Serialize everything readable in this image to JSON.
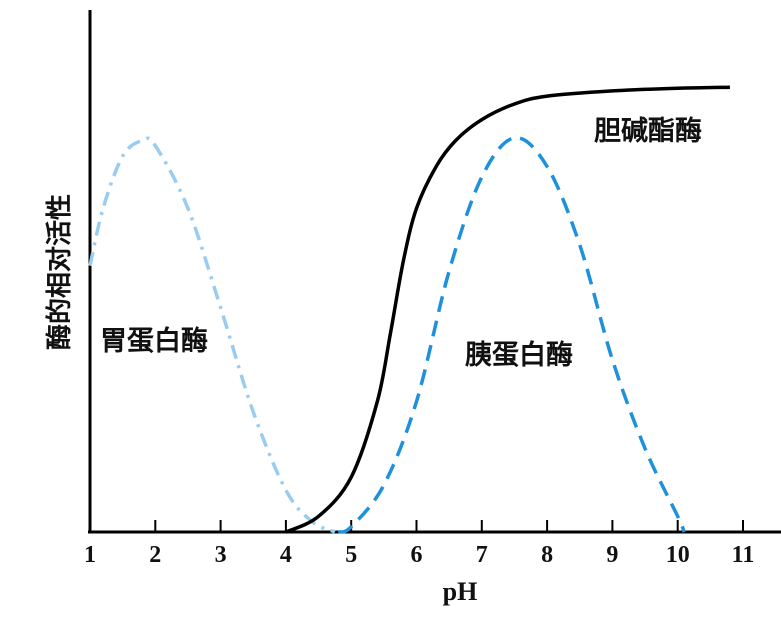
{
  "chart_data": {
    "type": "line",
    "title": "",
    "xlabel": "pH",
    "ylabel": "酶的相对活性",
    "xlim": [
      1,
      11.5
    ],
    "ylim": [
      0,
      100
    ],
    "xticks": [
      "1",
      "2",
      "3",
      "4",
      "5",
      "6",
      "7",
      "8",
      "9",
      "10",
      "11"
    ],
    "grid": false,
    "series": [
      {
        "name": "胃蛋白酶",
        "style": "dash-dot",
        "color": "#99CCF0",
        "x": [
          1,
          1.2,
          1.5,
          1.8,
          2.0,
          2.5,
          3.0,
          3.5,
          4.0,
          4.4,
          4.75
        ],
        "y": [
          51,
          62,
          72,
          75,
          74,
          62,
          43,
          23,
          8,
          2,
          0
        ]
      },
      {
        "name": "胰蛋白酶",
        "style": "dashed",
        "color": "#1E90DC",
        "x": [
          4.8,
          5.0,
          5.5,
          6.0,
          6.5,
          7.0,
          7.5,
          8.0,
          8.5,
          9.0,
          9.5,
          10.0,
          10.1
        ],
        "y": [
          0,
          1,
          9,
          25,
          50,
          68,
          75.5,
          70,
          55,
          33,
          16,
          3,
          0
        ]
      },
      {
        "name": "胆碱酯酶",
        "style": "solid",
        "color": "#000000",
        "x": [
          4.0,
          4.5,
          5.0,
          5.4,
          5.6,
          5.8,
          6.0,
          6.3,
          6.6,
          7.0,
          7.5,
          8.0,
          9.0,
          10.0,
          10.8
        ],
        "y": [
          0,
          3,
          10.5,
          25,
          38,
          52,
          62,
          70,
          75,
          79,
          82,
          83.5,
          84.5,
          85,
          85.2
        ]
      }
    ]
  }
}
